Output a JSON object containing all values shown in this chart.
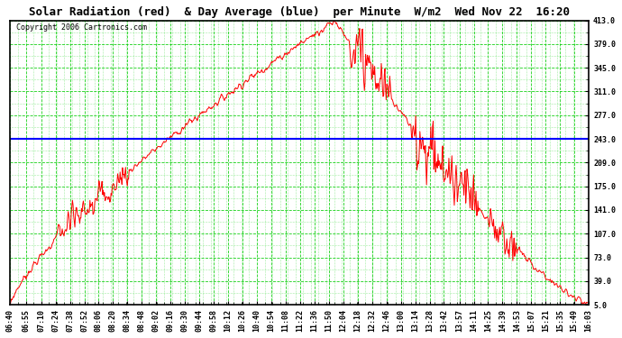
{
  "title": "Solar Radiation (red)  & Day Average (blue)  per Minute  W/m2  Wed Nov 22  16:20",
  "copyright": "Copyright 2006 Cartronics.com",
  "fig_bg_color": "#ffffff",
  "plot_bg_color": "#ffffff",
  "grid_color": "#00cc00",
  "line_color": "#ff0000",
  "avg_color": "#0000ff",
  "text_color": "#000000",
  "border_color": "#000000",
  "yticks": [
    5.0,
    39.0,
    73.0,
    107.0,
    141.0,
    175.0,
    209.0,
    243.0,
    277.0,
    311.0,
    345.0,
    379.0,
    413.0
  ],
  "ymin": 5.0,
  "ymax": 413.0,
  "day_average": 243.0,
  "xtick_labels": [
    "06:40",
    "06:55",
    "07:10",
    "07:24",
    "07:38",
    "07:52",
    "08:06",
    "08:20",
    "08:34",
    "08:48",
    "09:02",
    "09:16",
    "09:30",
    "09:44",
    "09:58",
    "10:12",
    "10:26",
    "10:40",
    "10:54",
    "11:08",
    "11:22",
    "11:36",
    "11:50",
    "12:04",
    "12:18",
    "12:32",
    "12:46",
    "13:00",
    "13:14",
    "13:28",
    "13:42",
    "13:57",
    "14:11",
    "14:25",
    "14:39",
    "14:53",
    "15:07",
    "15:21",
    "15:35",
    "15:49",
    "16:03"
  ]
}
